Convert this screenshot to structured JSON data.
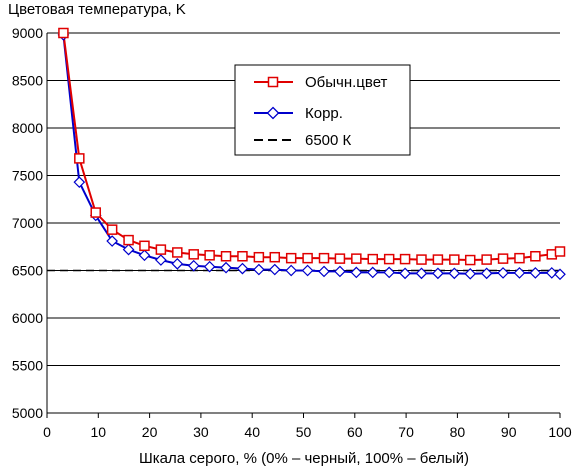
{
  "chart_data": {
    "type": "line",
    "title": "",
    "ylabel": "Цветовая температура, K",
    "xlabel": "Шкала серого, % (0% – черный, 100% – белый)",
    "xlim": [
      0,
      100
    ],
    "ylim": [
      5000,
      9000
    ],
    "x_ticks": [
      0,
      10,
      20,
      30,
      40,
      50,
      60,
      70,
      80,
      90,
      100
    ],
    "y_ticks": [
      5000,
      5500,
      6000,
      6500,
      7000,
      7500,
      8000,
      8500,
      9000
    ],
    "grid": "horizontal",
    "legend_position": "top-right",
    "series": [
      {
        "name": "Обычн.цвет",
        "color": "#e00000",
        "marker": "square",
        "x": [
          3.2,
          6.3,
          9.5,
          12.7,
          15.9,
          19.0,
          22.2,
          25.4,
          28.6,
          31.7,
          34.9,
          38.1,
          41.3,
          44.4,
          47.6,
          50.8,
          54.0,
          57.1,
          60.3,
          63.5,
          66.7,
          69.8,
          73.0,
          76.2,
          79.4,
          82.5,
          85.7,
          88.9,
          92.1,
          95.2,
          98.4,
          100
        ],
        "values": [
          9000,
          7680,
          7110,
          6930,
          6820,
          6760,
          6720,
          6690,
          6670,
          6660,
          6650,
          6650,
          6640,
          6640,
          6630,
          6630,
          6630,
          6625,
          6625,
          6620,
          6620,
          6620,
          6615,
          6615,
          6615,
          6610,
          6615,
          6625,
          6630,
          6650,
          6670,
          6700
        ]
      },
      {
        "name": "Корр.",
        "color": "#0000cc",
        "marker": "diamond",
        "x": [
          3.2,
          6.3,
          9.5,
          12.7,
          15.9,
          19.0,
          22.2,
          25.4,
          28.6,
          31.7,
          34.9,
          38.1,
          41.3,
          44.4,
          47.6,
          50.8,
          54.0,
          57.1,
          60.3,
          63.5,
          66.7,
          69.8,
          73.0,
          76.2,
          79.4,
          82.5,
          85.7,
          88.9,
          92.1,
          95.2,
          98.4,
          100
        ],
        "values": [
          8980,
          7430,
          7080,
          6810,
          6720,
          6660,
          6610,
          6570,
          6550,
          6540,
          6530,
          6520,
          6510,
          6510,
          6500,
          6500,
          6490,
          6490,
          6480,
          6480,
          6480,
          6470,
          6470,
          6470,
          6470,
          6465,
          6470,
          6475,
          6475,
          6475,
          6475,
          6460
        ]
      },
      {
        "name": "6500 К",
        "color": "#000000",
        "dash": true,
        "x": [
          0,
          100
        ],
        "values": [
          6500,
          6500
        ]
      }
    ]
  }
}
